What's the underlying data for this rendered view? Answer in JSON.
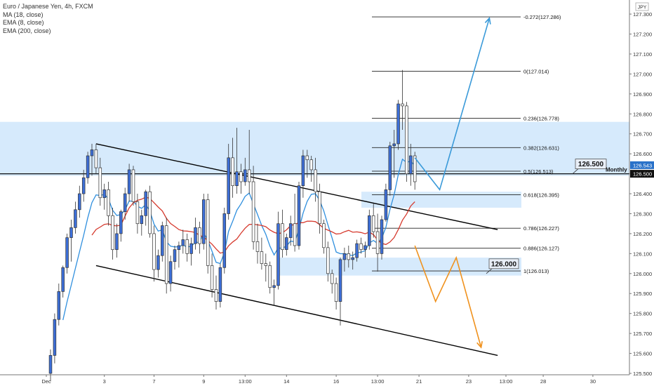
{
  "header": {
    "title": "Euro / Japanese Yen, 4h, FXCM",
    "indicators": [
      "MA (18, close)",
      "EMA (8, close)",
      "EMA (200, close)"
    ],
    "currency": "JPY"
  },
  "chart_data": {
    "type": "candlestick",
    "symbol": "EURJPY",
    "timeframe": "4h",
    "ylim": [
      125.5,
      127.36
    ],
    "y_ticks": [
      125.5,
      125.6,
      125.7,
      125.8,
      125.9,
      126.0,
      126.1,
      126.2,
      126.3,
      126.4,
      126.5,
      126.6,
      126.7,
      126.8,
      126.9,
      127.0,
      127.1,
      127.2,
      127.3
    ],
    "x_ticks": [
      {
        "label": "Dec",
        "i": 0
      },
      {
        "label": "3",
        "i": 13
      },
      {
        "label": "7",
        "i": 25
      },
      {
        "label": "9",
        "i": 37
      },
      {
        "label": "13:00",
        "i": 47
      },
      {
        "label": "14",
        "i": 57
      },
      {
        "label": "16",
        "i": 69
      },
      {
        "label": "13:00",
        "i": 79
      },
      {
        "label": "21",
        "i": 89
      },
      {
        "label": "23",
        "i": 101
      },
      {
        "label": "13:00",
        "i": 110
      },
      {
        "label": "28",
        "i": 119
      },
      {
        "label": "30",
        "i": 131
      }
    ],
    "last_price": "126.543",
    "monthly_level": "126.500",
    "monthly_label": "Monthly",
    "levels": [
      {
        "label": "126.500",
        "value": 126.5
      },
      {
        "label": "126.000",
        "value": 126.0
      }
    ],
    "zones": [
      {
        "from": 126.49,
        "to": 126.76,
        "color": "#cfe6fb"
      },
      {
        "from": 126.33,
        "to": 126.41,
        "color": "#cfe6fb"
      },
      {
        "from": 125.99,
        "to": 126.08,
        "color": "#cfe6fb"
      }
    ],
    "fib": [
      {
        "label": "-0.272(127.286)",
        "value": 127.286
      },
      {
        "label": "0(127.014)",
        "value": 127.014
      },
      {
        "label": "0.236(126.778)",
        "value": 126.778
      },
      {
        "label": "0.382(126.631)",
        "value": 126.631
      },
      {
        "label": "0.5(126.513)",
        "value": 126.513
      },
      {
        "label": "0.618(126.395)",
        "value": 126.395
      },
      {
        "label": "0.786(126.227)",
        "value": 126.227
      },
      {
        "label": "0.886(126.127)",
        "value": 126.127
      },
      {
        "label": "1(126.013)",
        "value": 126.013
      }
    ],
    "channel": [
      {
        "from": [
          11,
          126.65
        ],
        "to": [
          108,
          126.22
        ]
      },
      {
        "from": [
          11,
          126.04
        ],
        "to": [
          108,
          125.59
        ]
      }
    ],
    "projections": [
      {
        "color": "#3a9ad9",
        "points": [
          [
            88,
            126.58
          ],
          [
            94,
            126.42
          ],
          [
            106,
            127.28
          ]
        ]
      },
      {
        "color": "#f0921e",
        "points": [
          [
            88,
            126.14
          ],
          [
            93,
            125.86
          ],
          [
            98,
            126.08
          ],
          [
            104,
            125.63
          ]
        ]
      }
    ],
    "candles": [
      {
        "o": 125.5,
        "h": 125.62,
        "l": 125.46,
        "c": 125.59
      },
      {
        "o": 125.59,
        "h": 125.8,
        "l": 125.55,
        "c": 125.77
      },
      {
        "o": 125.77,
        "h": 125.95,
        "l": 125.74,
        "c": 125.91
      },
      {
        "o": 125.91,
        "h": 126.04,
        "l": 125.88,
        "c": 126.03
      },
      {
        "o": 126.03,
        "h": 126.2,
        "l": 126.0,
        "c": 126.18
      },
      {
        "o": 126.18,
        "h": 126.27,
        "l": 126.06,
        "c": 126.23
      },
      {
        "o": 126.23,
        "h": 126.36,
        "l": 126.2,
        "c": 126.32
      },
      {
        "o": 126.32,
        "h": 126.44,
        "l": 126.28,
        "c": 126.4
      },
      {
        "o": 126.4,
        "h": 126.52,
        "l": 126.36,
        "c": 126.48
      },
      {
        "o": 126.48,
        "h": 126.61,
        "l": 126.45,
        "c": 126.59
      },
      {
        "o": 126.59,
        "h": 126.65,
        "l": 126.49,
        "c": 126.62
      },
      {
        "o": 126.62,
        "h": 126.65,
        "l": 126.5,
        "c": 126.53
      },
      {
        "o": 126.53,
        "h": 126.58,
        "l": 126.34,
        "c": 126.38
      },
      {
        "o": 126.38,
        "h": 126.45,
        "l": 126.32,
        "c": 126.42
      },
      {
        "o": 126.42,
        "h": 126.46,
        "l": 126.24,
        "c": 126.29
      },
      {
        "o": 126.29,
        "h": 126.33,
        "l": 126.07,
        "c": 126.12
      },
      {
        "o": 126.12,
        "h": 126.25,
        "l": 126.08,
        "c": 126.2
      },
      {
        "o": 126.2,
        "h": 126.32,
        "l": 126.16,
        "c": 126.31
      },
      {
        "o": 126.31,
        "h": 126.43,
        "l": 126.27,
        "c": 126.4
      },
      {
        "o": 126.4,
        "h": 126.55,
        "l": 126.36,
        "c": 126.52
      },
      {
        "o": 126.52,
        "h": 126.54,
        "l": 126.34,
        "c": 126.36
      },
      {
        "o": 126.36,
        "h": 126.4,
        "l": 126.2,
        "c": 126.25
      },
      {
        "o": 126.25,
        "h": 126.32,
        "l": 126.19,
        "c": 126.29
      },
      {
        "o": 126.29,
        "h": 126.42,
        "l": 126.24,
        "c": 126.41
      },
      {
        "o": 126.41,
        "h": 126.44,
        "l": 126.18,
        "c": 126.2
      },
      {
        "o": 126.2,
        "h": 126.24,
        "l": 125.96,
        "c": 126.02
      },
      {
        "o": 126.02,
        "h": 126.12,
        "l": 125.98,
        "c": 126.09
      },
      {
        "o": 126.09,
        "h": 126.26,
        "l": 126.06,
        "c": 126.24
      },
      {
        "o": 126.24,
        "h": 126.28,
        "l": 125.9,
        "c": 125.95
      },
      {
        "o": 125.95,
        "h": 126.09,
        "l": 125.91,
        "c": 126.06
      },
      {
        "o": 126.06,
        "h": 126.14,
        "l": 126.02,
        "c": 126.12
      },
      {
        "o": 126.12,
        "h": 126.16,
        "l": 126.03,
        "c": 126.14
      },
      {
        "o": 126.14,
        "h": 126.22,
        "l": 126.1,
        "c": 126.17
      },
      {
        "o": 126.17,
        "h": 126.2,
        "l": 126.06,
        "c": 126.1
      },
      {
        "o": 126.1,
        "h": 126.18,
        "l": 126.04,
        "c": 126.15
      },
      {
        "o": 126.15,
        "h": 126.28,
        "l": 126.12,
        "c": 126.23
      },
      {
        "o": 126.23,
        "h": 126.26,
        "l": 126.1,
        "c": 126.15
      },
      {
        "o": 126.15,
        "h": 126.4,
        "l": 126.12,
        "c": 126.37
      },
      {
        "o": 126.37,
        "h": 126.4,
        "l": 126.0,
        "c": 126.04
      },
      {
        "o": 126.04,
        "h": 126.1,
        "l": 125.88,
        "c": 125.92
      },
      {
        "o": 125.92,
        "h": 125.99,
        "l": 125.82,
        "c": 125.86
      },
      {
        "o": 125.86,
        "h": 126.05,
        "l": 125.83,
        "c": 126.03
      },
      {
        "o": 126.03,
        "h": 126.33,
        "l": 126.0,
        "c": 126.3
      },
      {
        "o": 126.3,
        "h": 126.65,
        "l": 126.27,
        "c": 126.58
      },
      {
        "o": 126.58,
        "h": 126.68,
        "l": 126.38,
        "c": 126.44
      },
      {
        "o": 126.44,
        "h": 126.73,
        "l": 126.4,
        "c": 126.51
      },
      {
        "o": 126.51,
        "h": 126.55,
        "l": 126.4,
        "c": 126.46
      },
      {
        "o": 126.46,
        "h": 126.58,
        "l": 126.44,
        "c": 126.52
      },
      {
        "o": 126.52,
        "h": 126.72,
        "l": 126.4,
        "c": 126.46
      },
      {
        "o": 126.46,
        "h": 126.54,
        "l": 126.12,
        "c": 126.16
      },
      {
        "o": 126.16,
        "h": 126.25,
        "l": 126.05,
        "c": 126.11
      },
      {
        "o": 126.11,
        "h": 126.18,
        "l": 126.02,
        "c": 126.05
      },
      {
        "o": 126.05,
        "h": 126.1,
        "l": 125.96,
        "c": 126.04
      },
      {
        "o": 126.04,
        "h": 126.06,
        "l": 125.9,
        "c": 125.93
      },
      {
        "o": 125.93,
        "h": 125.97,
        "l": 125.84,
        "c": 125.94
      },
      {
        "o": 125.94,
        "h": 126.31,
        "l": 125.92,
        "c": 126.25
      },
      {
        "o": 126.25,
        "h": 126.32,
        "l": 126.08,
        "c": 126.12
      },
      {
        "o": 126.12,
        "h": 126.2,
        "l": 126.09,
        "c": 126.18
      },
      {
        "o": 126.18,
        "h": 126.29,
        "l": 126.14,
        "c": 126.25
      },
      {
        "o": 126.25,
        "h": 126.4,
        "l": 126.11,
        "c": 126.14
      },
      {
        "o": 126.14,
        "h": 126.46,
        "l": 126.12,
        "c": 126.44
      },
      {
        "o": 126.44,
        "h": 126.62,
        "l": 126.38,
        "c": 126.59
      },
      {
        "o": 126.59,
        "h": 126.62,
        "l": 126.48,
        "c": 126.57
      },
      {
        "o": 126.57,
        "h": 126.59,
        "l": 126.46,
        "c": 126.52
      },
      {
        "o": 126.52,
        "h": 126.58,
        "l": 126.36,
        "c": 126.41
      },
      {
        "o": 126.41,
        "h": 126.45,
        "l": 126.2,
        "c": 126.25
      },
      {
        "o": 126.25,
        "h": 126.27,
        "l": 126.1,
        "c": 126.13
      },
      {
        "o": 126.13,
        "h": 126.16,
        "l": 125.96,
        "c": 126.0
      },
      {
        "o": 126.0,
        "h": 126.02,
        "l": 125.9,
        "c": 125.95
      },
      {
        "o": 125.95,
        "h": 125.98,
        "l": 125.82,
        "c": 125.86
      },
      {
        "o": 125.86,
        "h": 126.08,
        "l": 125.74,
        "c": 126.07
      },
      {
        "o": 126.07,
        "h": 126.13,
        "l": 126.01,
        "c": 126.1
      },
      {
        "o": 126.1,
        "h": 126.14,
        "l": 126.03,
        "c": 126.07
      },
      {
        "o": 126.07,
        "h": 126.11,
        "l": 126.02,
        "c": 126.08
      },
      {
        "o": 126.08,
        "h": 126.17,
        "l": 126.06,
        "c": 126.15
      },
      {
        "o": 126.15,
        "h": 126.18,
        "l": 126.1,
        "c": 126.12
      },
      {
        "o": 126.12,
        "h": 126.16,
        "l": 126.08,
        "c": 126.14
      },
      {
        "o": 126.14,
        "h": 126.32,
        "l": 126.12,
        "c": 126.29
      },
      {
        "o": 126.29,
        "h": 126.35,
        "l": 126.18,
        "c": 126.21
      },
      {
        "o": 126.21,
        "h": 126.3,
        "l": 126.01,
        "c": 126.1
      },
      {
        "o": 126.1,
        "h": 126.29,
        "l": 126.07,
        "c": 126.27
      },
      {
        "o": 126.27,
        "h": 126.45,
        "l": 126.26,
        "c": 126.42
      },
      {
        "o": 126.42,
        "h": 126.66,
        "l": 126.39,
        "c": 126.64
      },
      {
        "o": 126.64,
        "h": 126.72,
        "l": 126.48,
        "c": 126.65
      },
      {
        "o": 126.65,
        "h": 126.87,
        "l": 126.62,
        "c": 126.85
      },
      {
        "o": 126.85,
        "h": 127.02,
        "l": 126.72,
        "c": 126.84
      },
      {
        "o": 126.84,
        "h": 126.86,
        "l": 126.46,
        "c": 126.5
      },
      {
        "o": 126.5,
        "h": 126.65,
        "l": 126.44,
        "c": 126.59
      },
      {
        "o": 126.59,
        "h": 126.61,
        "l": 126.42,
        "c": 126.46
      }
    ]
  }
}
